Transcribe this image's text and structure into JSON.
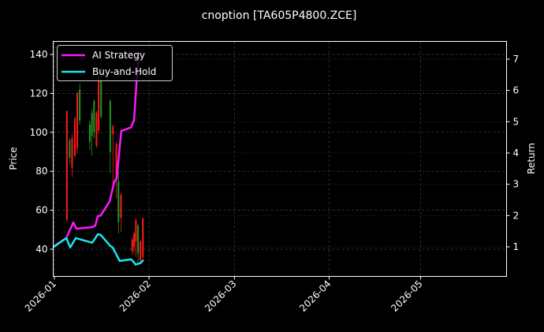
{
  "chart_data": {
    "type": "line",
    "title": "cnoption [TA605P4800.ZCE]",
    "xlabel": "",
    "ylabel": "Price",
    "y2label": "Return",
    "x_ticks": [
      "2026-01",
      "2026-02",
      "2026-03",
      "2026-04",
      "2026-05"
    ],
    "y_ticks": [
      40,
      60,
      80,
      100,
      120,
      140
    ],
    "y2_ticks": [
      1,
      2,
      3,
      4,
      5,
      6,
      7
    ],
    "ylim": [
      26,
      147
    ],
    "y2lim": [
      0.05,
      7.6
    ],
    "xlim_days": [
      0,
      151
    ],
    "grid": true,
    "legend_position": "upper left",
    "colors": {
      "background": "#000000",
      "ai_strategy": "#ff19ff",
      "buy_and_hold": "#19e6f0",
      "candle_up": "#1f9a1f",
      "candle_down": "#ff1a1a",
      "axes": "#ffffff",
      "grid": "#555555"
    },
    "series": [
      {
        "name": "AI Strategy",
        "x_days": [
          0,
          3.9,
          6.2,
          7.2,
          12.4,
          13.4,
          14.2,
          15.2,
          18.1,
          19.6,
          20.4,
          21.9,
          25.1,
          26.1,
          27.6
        ],
        "values": [
          1.03,
          1.28,
          1.78,
          1.58,
          1.63,
          1.68,
          1.98,
          2.0,
          2.46,
          3.08,
          3.18,
          4.7,
          4.82,
          5.05,
          7.25
        ]
      },
      {
        "name": "Buy-and-Hold",
        "x_days": [
          -0.5,
          3.9,
          5.2,
          7.0,
          12.4,
          13.4,
          14.2,
          15.2,
          18.3,
          19.1,
          21.4,
          25.1,
          26.1,
          26.6,
          28.2,
          29.2
        ],
        "values": [
          0.98,
          1.28,
          0.98,
          1.28,
          1.13,
          1.28,
          1.4,
          1.38,
          1.03,
          0.98,
          0.55,
          0.6,
          0.5,
          0.43,
          0.48,
          0.58
        ]
      }
    ],
    "candles": [
      {
        "day": 4.1,
        "open": 111,
        "close": 55,
        "high": 111,
        "low": 54
      },
      {
        "day": 5.0,
        "open": 87,
        "close": 96,
        "high": 97,
        "low": 84
      },
      {
        "day": 5.8,
        "open": 97,
        "close": 82,
        "high": 99,
        "low": 77
      },
      {
        "day": 6.7,
        "open": 107,
        "close": 88,
        "high": 108,
        "low": 87
      },
      {
        "day": 7.5,
        "open": 120,
        "close": 92,
        "high": 121,
        "low": 89
      },
      {
        "day": 8.3,
        "open": 106,
        "close": 122,
        "high": 125,
        "low": 104
      },
      {
        "day": 11.6,
        "open": 95,
        "close": 104,
        "high": 106,
        "low": 91
      },
      {
        "day": 12.3,
        "open": 98,
        "close": 110,
        "high": 112,
        "low": 88
      },
      {
        "day": 13.0,
        "open": 100,
        "close": 116,
        "high": 117,
        "low": 97
      },
      {
        "day": 13.8,
        "open": 110,
        "close": 93,
        "high": 111,
        "low": 92
      },
      {
        "day": 14.5,
        "open": 130,
        "close": 101,
        "high": 130,
        "low": 99
      },
      {
        "day": 15.3,
        "open": 108,
        "close": 133,
        "high": 141,
        "low": 107
      },
      {
        "day": 18.3,
        "open": 90,
        "close": 116,
        "high": 117,
        "low": 79
      },
      {
        "day": 19.2,
        "open": 103,
        "close": 99,
        "high": 104,
        "low": 74
      },
      {
        "day": 20.3,
        "open": 94,
        "close": 76,
        "high": 95,
        "low": 66
      },
      {
        "day": 21.0,
        "open": 54,
        "close": 75,
        "high": 80,
        "low": 48
      },
      {
        "day": 21.8,
        "open": 68,
        "close": 56,
        "high": 69,
        "low": 49
      },
      {
        "day": 25.5,
        "open": 45,
        "close": 39,
        "high": 46,
        "low": 37
      },
      {
        "day": 26.1,
        "open": 48,
        "close": 41,
        "high": 49,
        "low": 38
      },
      {
        "day": 26.7,
        "open": 55,
        "close": 44,
        "high": 56,
        "low": 36
      },
      {
        "day": 27.4,
        "open": 38,
        "close": 52,
        "high": 53,
        "low": 33
      },
      {
        "day": 28.2,
        "open": 44,
        "close": 34,
        "high": 45,
        "low": 33
      },
      {
        "day": 29.0,
        "open": 56,
        "close": 36,
        "high": 56,
        "low": 34
      }
    ]
  },
  "legend": {
    "items": [
      {
        "label": "AI Strategy",
        "color": "#ff19ff"
      },
      {
        "label": "Buy-and-Hold",
        "color": "#19e6f0"
      }
    ]
  }
}
